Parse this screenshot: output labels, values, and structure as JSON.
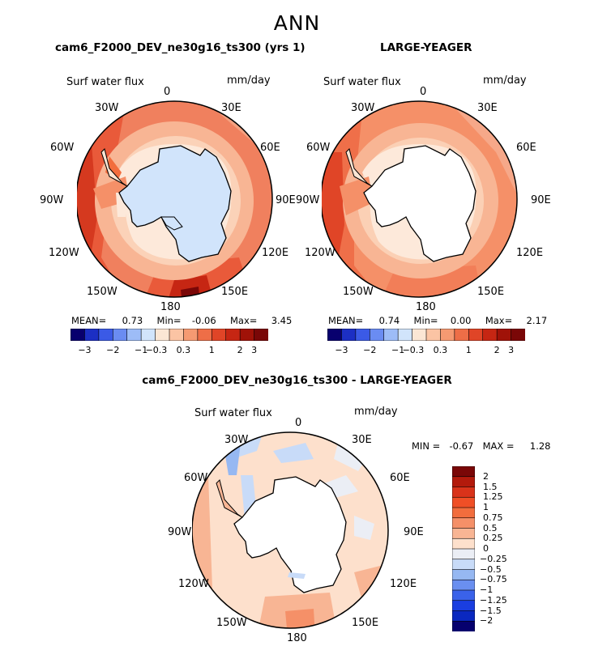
{
  "title": "ANN",
  "panels": [
    {
      "id": "model",
      "title": "cam6_F2000_DEV_ne30g16_ts300 (yrs 1)",
      "variable_label": "Surf water flux",
      "units": "mm/day",
      "stats": {
        "mean_label": "MEAN=",
        "mean": "0.73",
        "min_label": "Min=",
        "min": "-0.06",
        "max_label": "Max=",
        "max": "3.45"
      }
    },
    {
      "id": "obs",
      "title": "LARGE-YEAGER",
      "variable_label": "Surf water flux",
      "units": "mm/day",
      "stats": {
        "mean_label": "MEAN=",
        "mean": "0.74",
        "min_label": "Min=",
        "min": "0.00",
        "max_label": "Max=",
        "max": "2.17"
      }
    },
    {
      "id": "diff",
      "title": "cam6_F2000_DEV_ne30g16_ts300 - LARGE-YEAGER",
      "variable_label": "Surf water flux",
      "units": "mm/day",
      "stats": {
        "min_label": "MIN =",
        "min": "-0.67",
        "max_label": "MAX =",
        "max": "1.28"
      }
    }
  ],
  "longitude_labels": {
    "lon0": "0",
    "lon30e": "30E",
    "lon60e": "60E",
    "lon90e": "90E",
    "lon120e": "120E",
    "lon150e": "150E",
    "lon180": "180",
    "lon150w": "150W",
    "lon120w": "120W",
    "lon90w": "90W",
    "lon60w": "60W",
    "lon30w": "30W"
  },
  "chart_data": [
    {
      "type": "heatmap",
      "subtype": "south-polar-stereographic",
      "title": "cam6_F2000_DEV_ne30g16_ts300 (yrs 1)",
      "variable": "Surf water flux",
      "units": "mm/day",
      "mean": 0.73,
      "min": -0.06,
      "max": 3.45,
      "colorbar_levels": [
        -3,
        -2,
        -1,
        -0.3,
        0.3,
        1,
        2,
        3
      ],
      "colorbar_tick_labels": [
        "-3",
        "-2",
        "-1",
        "-0.3",
        "0.3",
        "1",
        "2",
        "3"
      ],
      "colors": [
        "#08006e",
        "#1c2fc4",
        "#3b5ae6",
        "#6a8cf2",
        "#9dbcf7",
        "#d1e4fb",
        "#fbe6d4",
        "#fbc4a4",
        "#f59a72",
        "#ee6e47",
        "#e04527",
        "#c62613",
        "#a01208",
        "#7a0707"
      ]
    },
    {
      "type": "heatmap",
      "subtype": "south-polar-stereographic",
      "title": "LARGE-YEAGER",
      "variable": "Surf water flux",
      "units": "mm/day",
      "mean": 0.74,
      "min": 0.0,
      "max": 2.17,
      "colorbar_levels": [
        -3,
        -2,
        -1,
        -0.3,
        0.3,
        1,
        2,
        3
      ],
      "colorbar_tick_labels": [
        "-3",
        "-2",
        "-1",
        "-0.3",
        "0.3",
        "1",
        "2",
        "3"
      ],
      "colors": [
        "#08006e",
        "#1c2fc4",
        "#3b5ae6",
        "#6a8cf2",
        "#9dbcf7",
        "#d1e4fb",
        "#fbe6d4",
        "#fbc4a4",
        "#f59a72",
        "#ee6e47",
        "#e04527",
        "#c62613",
        "#a01208",
        "#7a0707"
      ]
    },
    {
      "type": "heatmap",
      "subtype": "south-polar-stereographic",
      "title": "cam6_F2000_DEV_ne30g16_ts300 - LARGE-YEAGER",
      "variable": "Surf water flux",
      "units": "mm/day",
      "min": -0.67,
      "max": 1.28,
      "colorbar_levels": [
        2,
        1.5,
        1.25,
        1,
        0.75,
        0.5,
        0.25,
        0,
        -0.25,
        -0.5,
        -0.75,
        -1,
        -1.25,
        -1.5,
        -2
      ],
      "colorbar_tick_labels": [
        "2",
        "1.5",
        "1.25",
        "1",
        "0.75",
        "0.5",
        "0.25",
        "0",
        "-0.25",
        "-0.5",
        "-0.75",
        "-1",
        "-1.25",
        "-1.5",
        "-2"
      ],
      "colors": [
        "#7a0707",
        "#b31a0c",
        "#d9331a",
        "#f04f26",
        "#f26d3d",
        "#f59068",
        "#f8b594",
        "#fde0cc",
        "#ebeef5",
        "#c8dbf8",
        "#96b8f2",
        "#6a8ff0",
        "#3a62ea",
        "#1a3ee0",
        "#0a28c0",
        "#06006e"
      ]
    }
  ]
}
